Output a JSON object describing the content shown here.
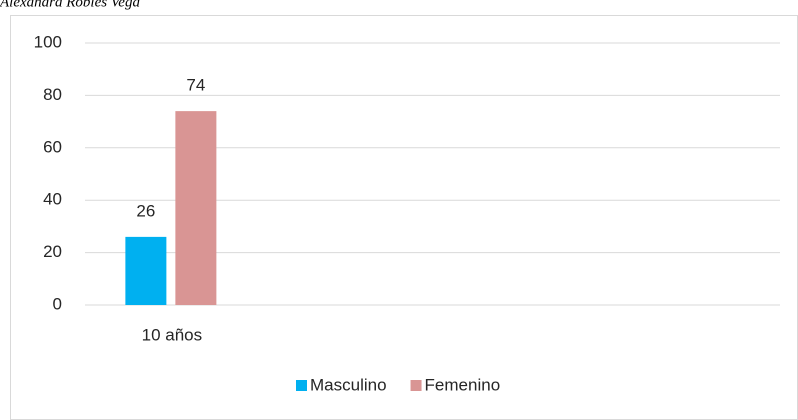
{
  "chart_data": {
    "type": "bar",
    "annotation": "Alexandra Robles Vega",
    "categories": [
      "10 años",
      null,
      null,
      null
    ],
    "series": [
      {
        "name": "Masculino",
        "color": "#00b0f0",
        "values": [
          26,
          null,
          null,
          null
        ]
      },
      {
        "name": "Femenino",
        "color": "#d99594",
        "values": [
          74,
          null,
          null,
          null
        ]
      }
    ],
    "ylim": [
      0,
      100
    ],
    "yticks": [
      0,
      20,
      40,
      60,
      80,
      100
    ],
    "grid": true,
    "legend": "bottom"
  }
}
